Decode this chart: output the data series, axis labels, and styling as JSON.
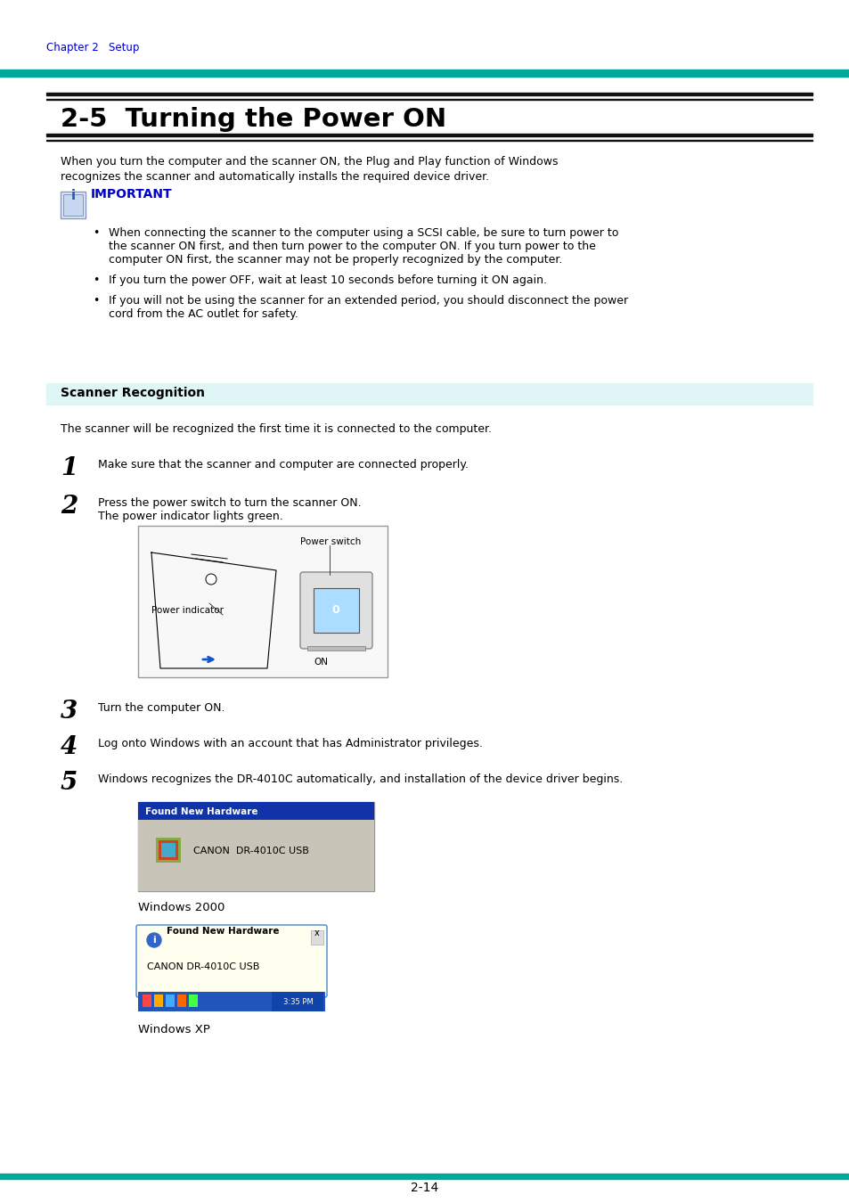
{
  "page_bg": "#ffffff",
  "teal_color": "#00aa99",
  "header_text": "Chapter 2   Setup",
  "header_text_color": "#0000cc",
  "title": "2-5  Turning the Power ON",
  "title_color": "#000000",
  "important_color": "#0000cc",
  "scanner_recognition_bg": "#e0f5f5",
  "scanner_recognition_text": "Scanner Recognition",
  "body_text_color": "#000000",
  "page_number": "2-14",
  "intro_line1": "When you turn the computer and the scanner ON, the Plug and Play function of Windows",
  "intro_line2": "recognizes the scanner and automatically installs the required device driver.",
  "bullet1_line1": "When connecting the scanner to the computer using a SCSI cable, be sure to turn power to",
  "bullet1_line2": "the scanner ON first, and then turn power to the computer ON. If you turn power to the",
  "bullet1_line3": "computer ON first, the scanner may not be properly recognized by the computer.",
  "bullet2": "If you turn the power OFF, wait at least 10 seconds before turning it ON again.",
  "bullet3_line1": "If you will not be using the scanner for an extended period, you should disconnect the power",
  "bullet3_line2": "cord from the AC outlet for safety.",
  "scanner_body": "The scanner will be recognized the first time it is connected to the computer.",
  "step1": "Make sure that the scanner and computer are connected properly.",
  "step2a": "Press the power switch to turn the scanner ON.",
  "step2b": "The power indicator lights green.",
  "step3": "Turn the computer ON.",
  "step4": "Log onto Windows with an account that has Administrator privileges.",
  "step5": "Windows recognizes the DR-4010C automatically, and installation of the device driver begins.",
  "win2000_title": "Found New Hardware",
  "win2000_text": "CANON  DR-4010C USB",
  "win2000_label": "Windows 2000",
  "winxp_title": "Found New Hardware",
  "winxp_text": "CANON DR-4010C USB",
  "winxp_label": "Windows XP",
  "winxp_time": "3:35 PM"
}
